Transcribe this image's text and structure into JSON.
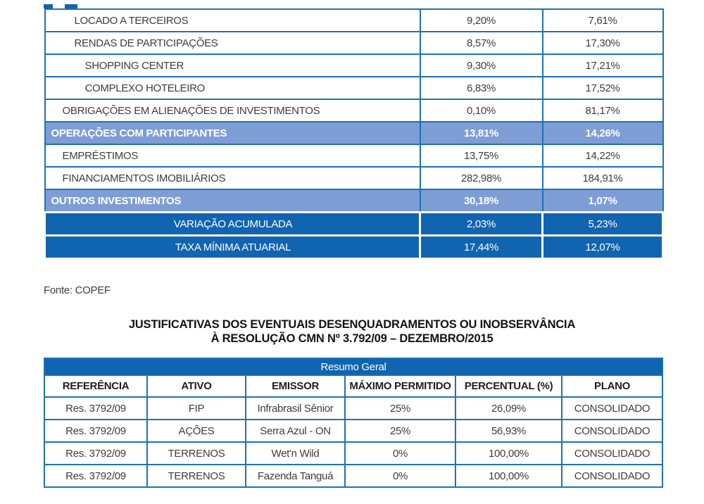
{
  "colors": {
    "border_blue": "#1B72B9",
    "dark_blue": "#1164AF",
    "light_blue_highlight": "#7E9DD5",
    "body_text": "#3C3C3C"
  },
  "table1": {
    "value_columns": 2,
    "rows": [
      {
        "label": "LOCADO A TERCEIROS",
        "col1": "9,20%",
        "col2": "7,61%",
        "style": "normal",
        "indent": 2
      },
      {
        "label": "RENDAS DE PARTICIPAÇÕES",
        "col1": "8,57%",
        "col2": "17,30%",
        "style": "normal",
        "indent": 2
      },
      {
        "label": "SHOPPING CENTER",
        "col1": "9,30%",
        "col2": "17,21%",
        "style": "normal",
        "indent": 3
      },
      {
        "label": "COMPLEXO HOTELEIRO",
        "col1": "6,83%",
        "col2": "17,52%",
        "style": "normal",
        "indent": 3
      },
      {
        "label": "OBRIGAÇÕES EM ALIENAÇÕES DE INVESTIMENTOS",
        "col1": "0,10%",
        "col2": "81,17%",
        "style": "normal",
        "indent": 1
      },
      {
        "label": "OPERAÇÕES COM PARTICIPANTES",
        "col1": "13,81%",
        "col2": "14,26%",
        "style": "category",
        "indent": 0
      },
      {
        "label": "EMPRÉSTIMOS",
        "col1": "13,75%",
        "col2": "14,22%",
        "style": "normal",
        "indent": 1
      },
      {
        "label": "FINANCIAMENTOS IMOBILIÁRIOS",
        "col1": "282,98%",
        "col2": "184,91%",
        "style": "normal",
        "indent": 1
      },
      {
        "label": "OUTROS INVESTIMENTOS",
        "col1": "30,18%",
        "col2": "1,07%",
        "style": "category",
        "indent": 0
      },
      {
        "label": "VARIAÇÃO ACUMULADA",
        "col1": "2,03%",
        "col2": "5,23%",
        "style": "total",
        "indent": 0
      },
      {
        "label": "TAXA MÍNIMA ATUARIAL",
        "col1": "17,44%",
        "col2": "12,07%",
        "style": "total",
        "indent": 0
      }
    ]
  },
  "source_note": "Fonte: COPEF",
  "heading": {
    "line1": "JUSTIFICATIVAS DOS EVENTUAIS DESENQUADRAMENTOS OU INOBSERVÂNCIA",
    "line2": "À RESOLUÇÃO CMN Nº 3.792/09 – DEZEMBRO/2015"
  },
  "table2": {
    "title": "Resumo Geral",
    "columns": [
      "REFERÊNCIA",
      "ATIVO",
      "EMISSOR",
      "MÁXIMO PERMITIDO",
      "PERCENTUAL (%)",
      "PLANO"
    ],
    "rows": [
      [
        "Res. 3792/09",
        "FIP",
        "Infrabrasil Sênior",
        "25%",
        "26,09%",
        "CONSOLIDADO"
      ],
      [
        "Res. 3792/09",
        "AÇÕES",
        "Serra Azul - ON",
        "25%",
        "56,93%",
        "CONSOLIDADO"
      ],
      [
        "Res. 3792/09",
        "TERRENOS",
        "Wet'n Wild",
        "0%",
        "100,00%",
        "CONSOLIDADO"
      ],
      [
        "Res. 3792/09",
        "TERRENOS",
        "Fazenda Tanguá",
        "0%",
        "100,00%",
        "CONSOLIDADO"
      ]
    ]
  }
}
